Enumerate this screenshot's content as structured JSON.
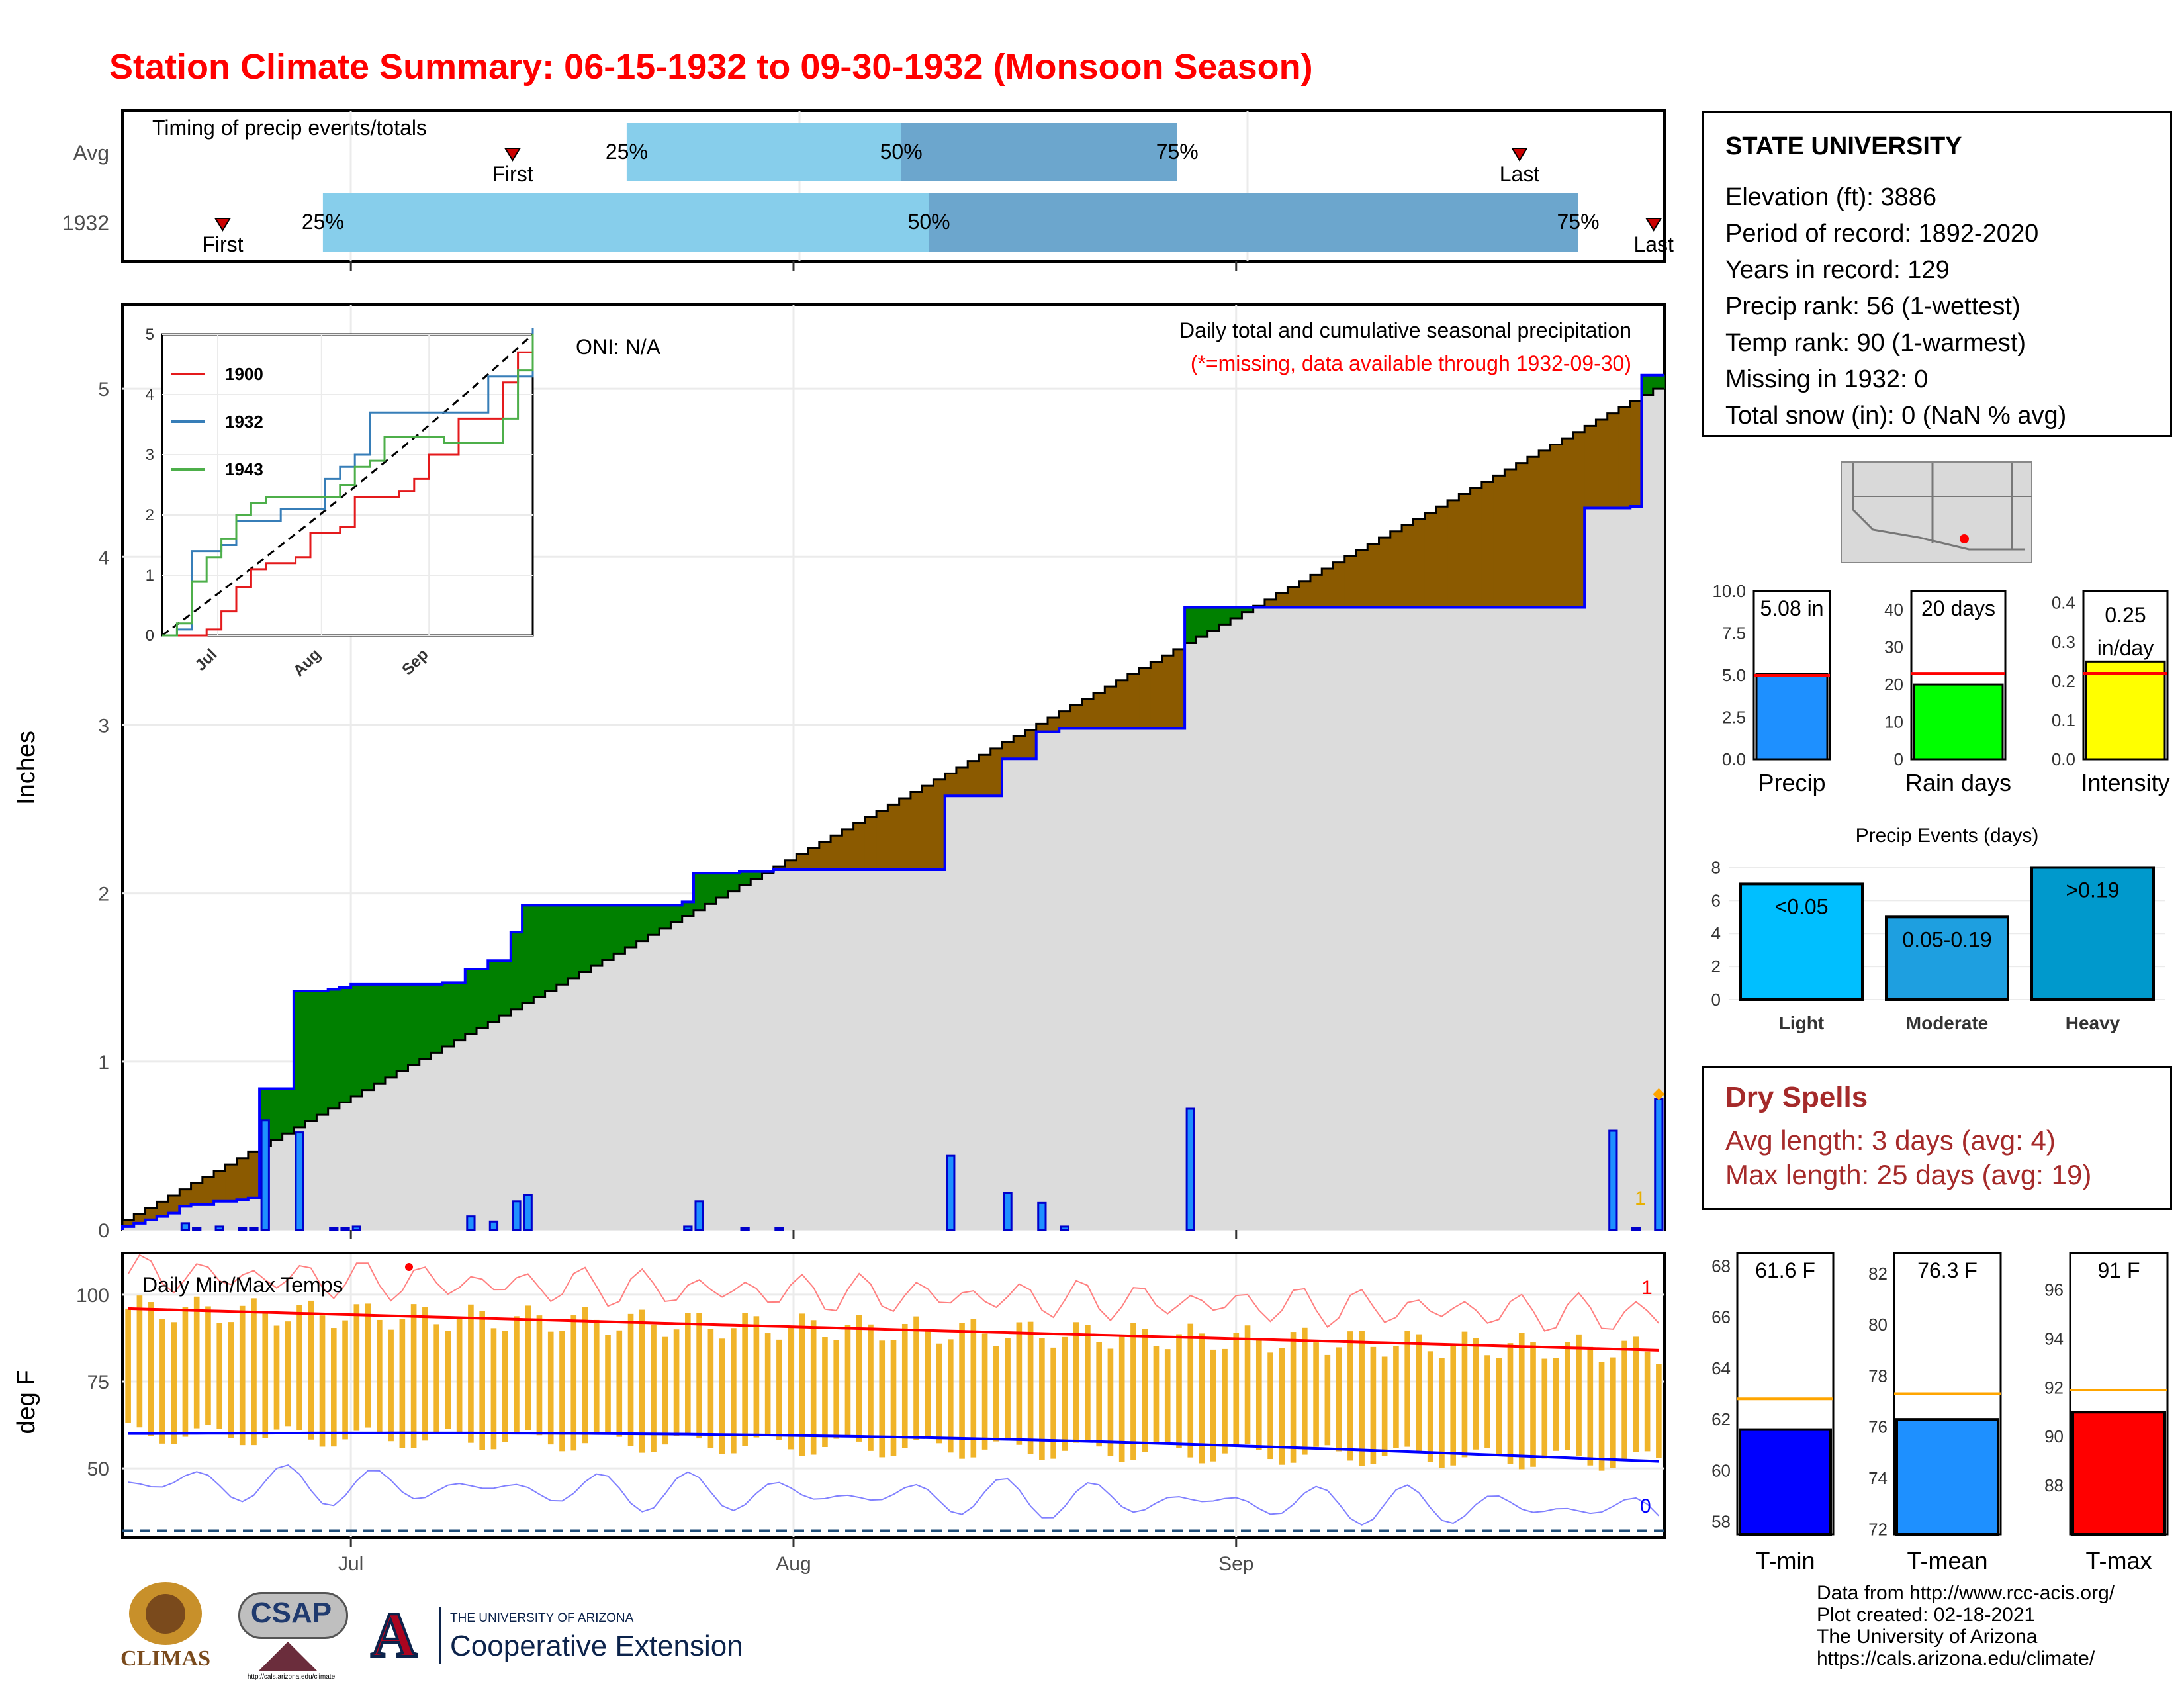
{
  "title": "Station Climate Summary: 06-15-1932 to 09-30-1932 (Monsoon Season)",
  "timing": {
    "label": "Timing of precip events/totals",
    "rows": [
      {
        "name": "Avg",
        "first_day": 0.253,
        "last_day": 0.906,
        "p25": 0.327,
        "p50": 0.505,
        "p75": 0.684,
        "first_label": "First",
        "last_label": "Last",
        "p25_label": "25%",
        "p50_label": "50%",
        "p75_label": "75%"
      },
      {
        "name": "1932",
        "first_day": 0.065,
        "last_day": 0.993,
        "p25": 0.13,
        "p50": 0.523,
        "p75": 0.944,
        "first_label": "First",
        "last_label": "Last",
        "p25_label": "25%",
        "p50_label": "50%",
        "p75_label": "75%"
      }
    ]
  },
  "x_axis": {
    "ticks": [
      {
        "label": "Jul",
        "day": 16
      },
      {
        "label": "Aug",
        "day": 47
      },
      {
        "label": "Sep",
        "day": 78
      }
    ],
    "ndays": 108
  },
  "chart_data": {
    "type": "area",
    "title": "Daily total and cumulative seasonal precipitation",
    "subtitle": "(*=missing, data available through 1932-09-30)",
    "ylabel": "Inches",
    "ylim": [
      0,
      5.5
    ],
    "yticks": [
      0,
      1,
      2,
      3,
      4,
      5
    ],
    "oni_label": "ONI: N/A",
    "last_value_label": "1",
    "cumulative_1932": [
      0.02,
      0.04,
      0.06,
      0.08,
      0.1,
      0.14,
      0.15,
      0.15,
      0.17,
      0.17,
      0.18,
      0.19,
      0.84,
      0.84,
      0.84,
      1.42,
      1.42,
      1.42,
      1.43,
      1.44,
      1.46,
      1.46,
      1.46,
      1.46,
      1.46,
      1.46,
      1.46,
      1.46,
      1.47,
      1.47,
      1.55,
      1.55,
      1.6,
      1.6,
      1.77,
      1.93,
      1.93,
      1.93,
      1.93,
      1.93,
      1.93,
      1.93,
      1.93,
      1.93,
      1.93,
      1.93,
      1.93,
      1.93,
      1.93,
      1.95,
      2.12,
      2.12,
      2.12,
      2.12,
      2.13,
      2.13,
      2.13,
      2.14,
      2.14,
      2.14,
      2.14,
      2.14,
      2.14,
      2.14,
      2.14,
      2.14,
      2.14,
      2.14,
      2.14,
      2.14,
      2.14,
      2.14,
      2.58,
      2.58,
      2.58,
      2.58,
      2.58,
      2.8,
      2.8,
      2.8,
      2.96,
      2.96,
      2.98,
      2.98,
      2.98,
      2.98,
      2.98,
      2.98,
      2.98,
      2.98,
      2.98,
      2.98,
      2.98,
      3.7,
      3.7,
      3.7,
      3.7,
      3.7,
      3.7,
      3.7,
      3.7,
      3.7,
      3.7,
      3.7,
      3.7,
      3.7,
      3.7,
      3.7,
      3.7,
      3.7,
      3.7,
      3.7,
      3.7,
      3.7,
      3.7,
      3.7,
      3.7,
      3.7,
      3.7,
      3.7,
      3.7,
      3.7,
      3.7,
      3.7,
      3.7,
      3.7,
      3.7,
      3.7,
      4.29,
      4.29,
      4.29,
      4.29,
      4.3,
      5.08,
      5.08
    ],
    "daily_1932": [
      0,
      0,
      0,
      0,
      0,
      0.04,
      0.01,
      0,
      0.02,
      0,
      0.01,
      0.01,
      0.65,
      0,
      0,
      0.58,
      0,
      0,
      0.01,
      0.01,
      0.02,
      0,
      0,
      0,
      0,
      0,
      0,
      0,
      0,
      0,
      0.08,
      0,
      0.05,
      0,
      0.17,
      0.21,
      0,
      0,
      0,
      0,
      0,
      0,
      0,
      0,
      0,
      0,
      0,
      0,
      0,
      0.02,
      0.17,
      0,
      0,
      0,
      0.01,
      0,
      0,
      0.01,
      0,
      0,
      0,
      0,
      0,
      0,
      0,
      0,
      0,
      0,
      0,
      0,
      0,
      0,
      0.44,
      0,
      0,
      0,
      0,
      0.22,
      0,
      0,
      0.16,
      0,
      0.02,
      0,
      0,
      0,
      0,
      0,
      0,
      0,
      0,
      0,
      0,
      0.72,
      0,
      0,
      0,
      0,
      0,
      0,
      0,
      0,
      0,
      0,
      0,
      0,
      0,
      0,
      0,
      0,
      0,
      0,
      0,
      0,
      0,
      0,
      0,
      0,
      0,
      0,
      0,
      0,
      0,
      0,
      0,
      0,
      0,
      0,
      0,
      0,
      0.59,
      0,
      0.01,
      0,
      0.78,
      0
    ],
    "cumulative_avg_start": 0.02,
    "cumulative_avg_end": 5.0,
    "inset": {
      "ylim": [
        0,
        5
      ],
      "yticks": [
        0,
        1,
        2,
        3,
        4,
        5
      ],
      "xticks": [
        "Jul",
        "Aug",
        "Sep"
      ],
      "series": [
        {
          "name": "1900",
          "color": "#e41a1c",
          "values": [
            0,
            0,
            0,
            0.1,
            0.4,
            0.8,
            1.1,
            1.2,
            1.2,
            1.3,
            1.7,
            1.7,
            1.8,
            2.3,
            2.3,
            2.3,
            2.4,
            2.6,
            3.0,
            3.0,
            3.6,
            3.6,
            3.6,
            4.2,
            4.7,
            5.0
          ]
        },
        {
          "name": "1932",
          "color": "#377eb8",
          "values": [
            0,
            0.1,
            1.4,
            1.4,
            1.5,
            1.9,
            1.9,
            1.9,
            2.1,
            2.1,
            2.1,
            2.6,
            2.8,
            3.0,
            3.7,
            3.7,
            3.7,
            3.7,
            3.7,
            3.7,
            3.7,
            3.7,
            4.3,
            4.3,
            4.3,
            5.1
          ]
        },
        {
          "name": "1943",
          "color": "#4daf4a",
          "values": [
            0,
            0.2,
            0.9,
            1.3,
            1.6,
            2.0,
            2.2,
            2.3,
            2.3,
            2.3,
            2.3,
            2.3,
            2.5,
            2.8,
            2.9,
            3.3,
            3.3,
            3.3,
            3.3,
            3.2,
            3.2,
            3.2,
            3.2,
            3.6,
            4.4,
            5.0
          ]
        }
      ]
    }
  },
  "temps": {
    "label": "Daily Min/Max Temps",
    "ylabel": "deg F",
    "ylim": [
      30,
      112
    ],
    "yticks": [
      50,
      75,
      100
    ],
    "freeze_line": 32,
    "record_count_high": "1",
    "record_count_low": "0",
    "max_avg_start": 96,
    "max_avg_end": 84,
    "min_avg_start": 60,
    "min_avg_end": 52
  },
  "station": {
    "name": "STATE UNIVERSITY",
    "lines": [
      "Elevation (ft): 3886",
      "Period of record: 1892-2020",
      "Years in record: 129",
      "Precip rank: 56 (1-wettest)",
      "Temp rank: 90 (1-warmest)",
      "Missing in 1932: 0",
      "Total snow (in): 0 (NaN % avg)"
    ]
  },
  "mini_bars": [
    {
      "label": "Precip",
      "value_text": "5.08 in",
      "value": 5.08,
      "avg": 5.0,
      "ymax": 10,
      "ticks": [
        "10.0",
        "7.5",
        "5.0",
        "2.5",
        "0.0"
      ],
      "color": "#1e90ff"
    },
    {
      "label": "Rain days",
      "value_text": "20 days",
      "value": 20,
      "avg": 23,
      "ymax": 45,
      "ticks": [
        "40",
        "30",
        "20",
        "10",
        "0"
      ],
      "color": "#00ff00"
    },
    {
      "label": "Intensity",
      "value_text": "0.25 in/day",
      "value": 0.25,
      "avg": 0.22,
      "ymax": 0.43,
      "ticks": [
        "0.4",
        "0.3",
        "0.2",
        "0.1",
        "0.0"
      ],
      "color": "#ffff00"
    }
  ],
  "events": {
    "title": "Precip Events (days)",
    "ymax": 8.5,
    "yticks": [
      "8",
      "6",
      "4",
      "2",
      "0"
    ],
    "bars": [
      {
        "cat": "Light",
        "label": "<0.05",
        "value": 7,
        "color": "#00bfff"
      },
      {
        "cat": "Moderate",
        "label": "0.05-0.19",
        "value": 5,
        "color": "#1e9fe0"
      },
      {
        "cat": "Heavy",
        "label": ">0.19",
        "value": 8,
        "color": "#0099cc"
      }
    ]
  },
  "dry_spells": {
    "title": "Dry Spells",
    "avg": "Avg length: 3 days (avg: 4)",
    "max": "Max length: 25 days (avg: 19)"
  },
  "temp_bars": [
    {
      "label": "T-min",
      "value_text": "61.6 F",
      "value": 61.6,
      "avg": 62.8,
      "ymin": 57.5,
      "ymax": 68.5,
      "ticks": [
        "68",
        "66",
        "64",
        "62",
        "60",
        "58"
      ],
      "color": "#0000ff"
    },
    {
      "label": "T-mean",
      "value_text": "76.3 F",
      "value": 76.3,
      "avg": 77.3,
      "ymin": 71.8,
      "ymax": 82.8,
      "ticks": [
        "82",
        "80",
        "78",
        "76",
        "74",
        "72"
      ],
      "color": "#1e90ff"
    },
    {
      "label": "T-max",
      "value_text": "91 F",
      "value": 91.0,
      "avg": 91.9,
      "ymin": 86.0,
      "ymax": 97.5,
      "ticks": [
        "96",
        "94",
        "92",
        "90",
        "88"
      ],
      "color": "#ff0000"
    }
  ],
  "footer": {
    "lines": [
      "Data from http://www.rcc-acis.org/",
      "Plot created: 02-18-2021",
      "The University of Arizona",
      "https://cals.arizona.edu/climate/"
    ]
  },
  "logos": {
    "climas": "CLIMAS",
    "csap": "CSAP",
    "csap_url": "http://cals.arizona.edu/climate",
    "ua_small": "THE UNIVERSITY OF ARIZONA",
    "ua_big": "Cooperative Extension"
  }
}
